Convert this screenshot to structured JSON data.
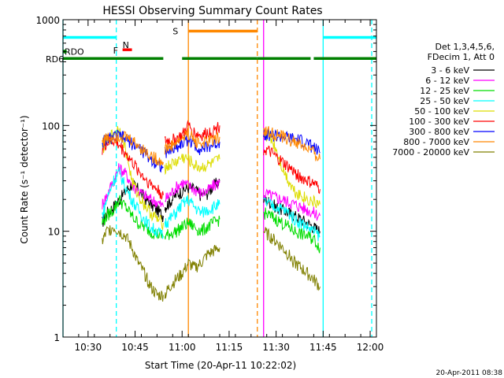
{
  "chart_data": {
    "type": "line",
    "title": "HESSI Observing Summary Count Rates",
    "xlabel": "Start Time (20-Apr-11 10:22:02)",
    "ylabel": "Count Rate (s⁻¹ detector⁻¹)",
    "xlim_minutes": [
      0,
      100
    ],
    "ylim": [
      1,
      1000
    ],
    "yscale": "log",
    "x_ticks": [
      {
        "label": "10:30",
        "minute": 8
      },
      {
        "label": "10:45",
        "minute": 23
      },
      {
        "label": "11:00",
        "minute": 38
      },
      {
        "label": "11:15",
        "minute": 53
      },
      {
        "label": "11:30",
        "minute": 68
      },
      {
        "label": "11:45",
        "minute": 83
      },
      {
        "label": "12:00",
        "minute": 98
      }
    ],
    "y_ticks": [
      {
        "label": "1",
        "value": 1
      },
      {
        "label": "10",
        "value": 10
      },
      {
        "label": "100",
        "value": 100
      },
      {
        "label": "1000",
        "value": 1000
      }
    ],
    "legend": {
      "header": [
        "Det 1,3,4,5,6,",
        "FDecim 1, Att 0"
      ],
      "placement": "right"
    },
    "series": [
      {
        "name": "3 - 6 keV",
        "color": "#000000",
        "segments": [
          {
            "x": [
              12.5,
              14,
              16,
              18,
              20,
              22,
              24,
              26,
              28,
              30,
              32
            ],
            "y": [
              12,
              15,
              17,
              20,
              24,
              28,
              25,
              21,
              18,
              16,
              14
            ]
          },
          {
            "x": [
              32.5,
              34,
              36,
              38,
              40,
              42,
              44,
              46,
              48,
              50
            ],
            "y": [
              17,
              19,
              22,
              24,
              26,
              25,
              22,
              23,
              27,
              30
            ]
          },
          {
            "x": [
              64,
              66,
              68,
              70,
              72,
              74,
              76,
              78,
              80,
              82
            ],
            "y": [
              20,
              19,
              17,
              16,
              15,
              14,
              13,
              12,
              11,
              10
            ]
          }
        ]
      },
      {
        "name": "6 - 12 keV",
        "color": "#ff00ff",
        "segments": [
          {
            "x": [
              12.5,
              14,
              16,
              18,
              20,
              22,
              24,
              26,
              28,
              30,
              32
            ],
            "y": [
              18,
              22,
              30,
              40,
              35,
              28,
              24,
              22,
              20,
              19,
              17
            ]
          },
          {
            "x": [
              32.5,
              34,
              36,
              38,
              40,
              42,
              44,
              46,
              48,
              50
            ],
            "y": [
              20,
              22,
              26,
              29,
              27,
              25,
              23,
              24,
              27,
              29
            ]
          },
          {
            "x": [
              64,
              66,
              68,
              70,
              72,
              74,
              76,
              78,
              80,
              82
            ],
            "y": [
              23,
              22,
              21,
              20,
              19,
              18,
              17,
              16,
              15,
              14
            ]
          }
        ]
      },
      {
        "name": "12 - 25 keV",
        "color": "#00dd00",
        "segments": [
          {
            "x": [
              12.5,
              14,
              16,
              18,
              20,
              22,
              24,
              26,
              28,
              30,
              32
            ],
            "y": [
              12,
              14,
              16,
              20,
              17,
              14,
              12,
              11,
              10,
              9.5,
              9
            ]
          },
          {
            "x": [
              32.5,
              34,
              36,
              38,
              40,
              42,
              44,
              46,
              48,
              50
            ],
            "y": [
              9,
              9.5,
              10,
              11,
              12,
              11,
              10,
              11,
              12,
              13
            ]
          },
          {
            "x": [
              64,
              66,
              68,
              70,
              72,
              74,
              76,
              78,
              80,
              82
            ],
            "y": [
              15,
              14,
              13,
              12,
              11,
              10,
              9.5,
              9,
              8.5,
              7
            ]
          }
        ]
      },
      {
        "name": "25 - 50 keV",
        "color": "#00ffff",
        "segments": [
          {
            "x": [
              12.5,
              14,
              16,
              18,
              20,
              22,
              24,
              26,
              28,
              30,
              32
            ],
            "y": [
              14,
              20,
              30,
              36,
              26,
              20,
              16,
              13,
              11,
              10,
              9
            ]
          },
          {
            "x": [
              32.5,
              34,
              36,
              38,
              40,
              42,
              44,
              46,
              48,
              50
            ],
            "y": [
              12,
              13,
              15,
              18,
              20,
              17,
              15,
              16,
              17,
              18
            ]
          },
          {
            "x": [
              64,
              66,
              68,
              70,
              72,
              74,
              76,
              78,
              80,
              82
            ],
            "y": [
              19,
              18,
              17,
              16,
              15,
              13,
              12,
              11,
              10,
              9
            ]
          }
        ]
      },
      {
        "name": "50 - 100 keV",
        "color": "#dddd00",
        "segments": [
          {
            "x": [
              12.5,
              14,
              16,
              18,
              20,
              22,
              24,
              26,
              28,
              30,
              32
            ],
            "y": [
              60,
              70,
              85,
              95,
              60,
              30,
              22,
              18,
              15,
              13,
              12
            ]
          },
          {
            "x": [
              32.5,
              34,
              36,
              38,
              40,
              42,
              44,
              46,
              48,
              50
            ],
            "y": [
              40,
              42,
              45,
              50,
              48,
              42,
              40,
              42,
              44,
              48
            ]
          },
          {
            "x": [
              64,
              66,
              68,
              70,
              72,
              74,
              76,
              78,
              80,
              82
            ],
            "y": [
              85,
              80,
              60,
              40,
              30,
              24,
              22,
              20,
              19,
              18
            ]
          }
        ]
      },
      {
        "name": "100 - 300 keV",
        "color": "#ff0000",
        "segments": [
          {
            "x": [
              12.5,
              14,
              16,
              18,
              20,
              22,
              24,
              26,
              28,
              30,
              32
            ],
            "y": [
              60,
              68,
              72,
              65,
              55,
              45,
              38,
              32,
              28,
              25,
              22
            ]
          },
          {
            "x": [
              32.5,
              34,
              36,
              38,
              40,
              42,
              44,
              46,
              48,
              50
            ],
            "y": [
              70,
              72,
              75,
              80,
              100,
              85,
              80,
              85,
              90,
              100
            ]
          },
          {
            "x": [
              64,
              66,
              68,
              70,
              72,
              74,
              76,
              78,
              80,
              82
            ],
            "y": [
              60,
              56,
              50,
              45,
              40,
              36,
              32,
              30,
              28,
              25
            ]
          }
        ]
      },
      {
        "name": "300 - 800 keV",
        "color": "#0000ff",
        "segments": [
          {
            "x": [
              12.5,
              14,
              16,
              18,
              20,
              22,
              24,
              26,
              28,
              30,
              32
            ],
            "y": [
              70,
              75,
              78,
              80,
              75,
              68,
              62,
              55,
              48,
              44,
              40
            ]
          },
          {
            "x": [
              32.5,
              34,
              36,
              38,
              40,
              42,
              44,
              46,
              48,
              50
            ],
            "y": [
              55,
              58,
              62,
              68,
              75,
              65,
              60,
              62,
              66,
              70
            ]
          },
          {
            "x": [
              64,
              66,
              68,
              70,
              72,
              74,
              76,
              78,
              80,
              82
            ],
            "y": [
              85,
              82,
              80,
              78,
              76,
              74,
              72,
              68,
              62,
              55
            ]
          }
        ]
      },
      {
        "name": "800 - 7000 keV",
        "color": "#ff8800",
        "segments": [
          {
            "x": [
              12.5,
              14,
              16,
              18,
              20,
              22,
              24,
              26,
              28,
              30,
              32
            ],
            "y": [
              72,
              76,
              78,
              80,
              78,
              72,
              65,
              58,
              52,
              48,
              45
            ]
          },
          {
            "x": [
              32.5,
              34,
              36,
              38,
              40,
              42,
              44,
              46,
              48,
              50
            ],
            "y": [
              60,
              63,
              68,
              75,
              85,
              72,
              68,
              70,
              74,
              78
            ]
          },
          {
            "x": [
              64,
              66,
              68,
              70,
              72,
              74,
              76,
              78,
              80,
              82
            ],
            "y": [
              90,
              86,
              82,
              78,
              74,
              70,
              65,
              60,
              55,
              48
            ]
          }
        ]
      },
      {
        "name": "7000 - 20000 keV",
        "color": "#808000",
        "segments": [
          {
            "x": [
              12.5,
              14,
              16,
              18,
              20,
              22,
              24,
              26,
              28,
              30,
              32
            ],
            "y": [
              8,
              10,
              11,
              10,
              9,
              7,
              5,
              4,
              3,
              2.5,
              2.5
            ]
          },
          {
            "x": [
              32.5,
              34,
              36,
              38,
              40,
              42,
              44,
              46,
              48,
              50
            ],
            "y": [
              2.5,
              3,
              3.5,
              4,
              5,
              4.5,
              5,
              6,
              6.5,
              7
            ]
          },
          {
            "x": [
              64,
              66,
              68,
              70,
              72,
              74,
              76,
              78,
              80,
              82
            ],
            "y": [
              10,
              9,
              8,
              7,
              6,
              5,
              4.5,
              4,
              3.5,
              3
            ]
          }
        ]
      }
    ],
    "flag_bars": [
      {
        "label": "",
        "color": "#00ffff",
        "y": 680,
        "segments": [
          [
            0,
            17
          ],
          [
            83,
            100
          ]
        ]
      },
      {
        "label": "N",
        "color": "#00ffff",
        "y": 580,
        "label_minute": 19,
        "segments": []
      },
      {
        "label": "F",
        "color": "#ff0000",
        "y": 520,
        "label_minute": 17,
        "segments": [
          [
            19,
            22
          ]
        ]
      },
      {
        "label": "S",
        "color": "#ff8800",
        "y": 780,
        "label_minute": 38,
        "segments": [
          [
            40,
            62
          ]
        ]
      },
      {
        "label": "RDO",
        "color": "#008000",
        "y": 500,
        "label_minute": 3,
        "segments": [
          [
            0,
            1
          ]
        ]
      },
      {
        "label": "RD6",
        "color": "#008000",
        "y": 430,
        "segments": [
          [
            0,
            32
          ],
          [
            38,
            62
          ],
          [
            62,
            79
          ],
          [
            80,
            100
          ]
        ]
      }
    ],
    "vertical_lines": [
      {
        "minute": 0,
        "color": "#00ffff",
        "style": "solid"
      },
      {
        "minute": 17,
        "color": "#00ffff",
        "style": "dashed"
      },
      {
        "minute": 40,
        "color": "#ff8800",
        "style": "solid"
      },
      {
        "minute": 62,
        "color": "#ff8800",
        "style": "dashed"
      },
      {
        "minute": 64,
        "color": "#ff00ff",
        "style": "solid"
      },
      {
        "minute": 83,
        "color": "#00ffff",
        "style": "solid"
      },
      {
        "minute": 98.5,
        "color": "#00ffff",
        "style": "dashed"
      }
    ]
  },
  "footer_timestamp": "20-Apr-2011 08:38"
}
